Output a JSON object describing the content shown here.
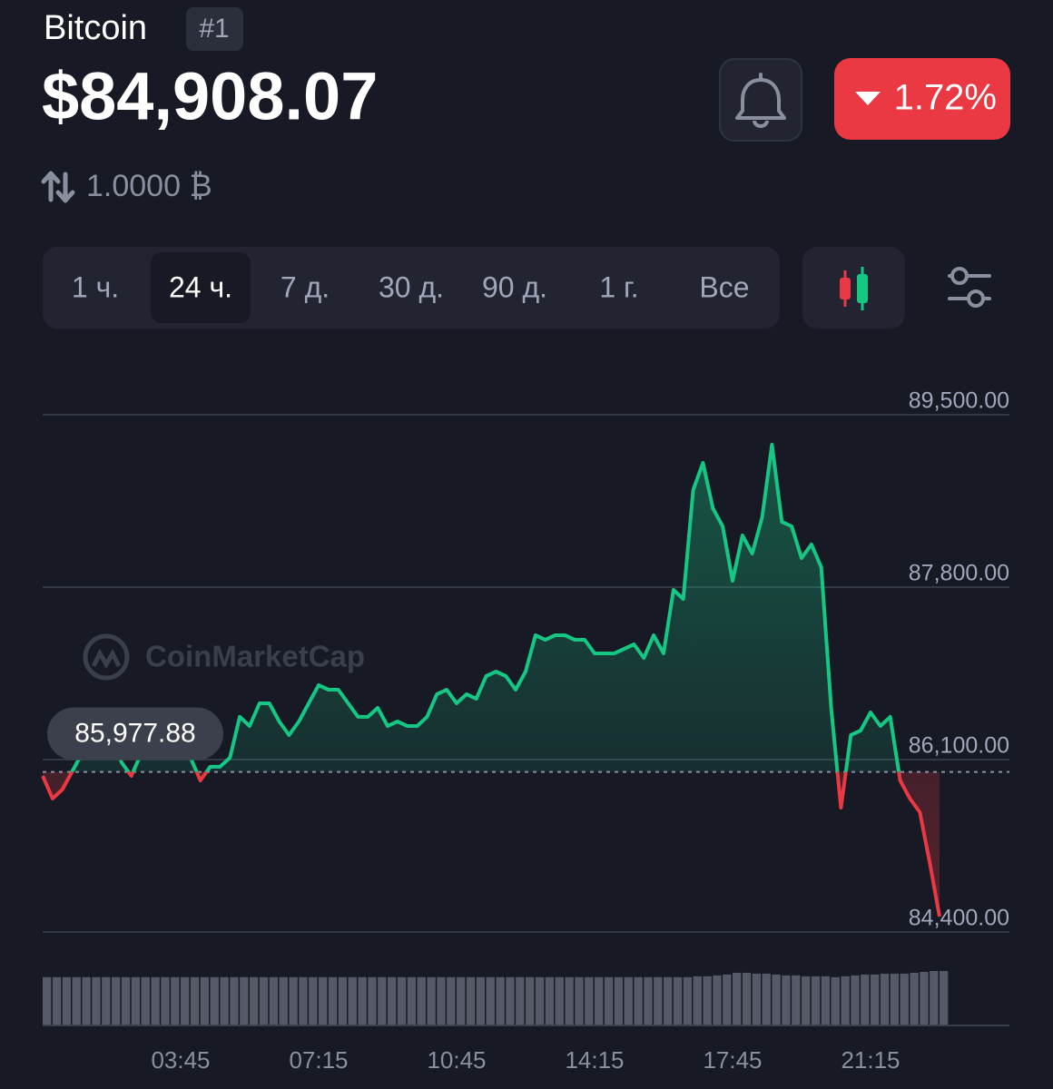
{
  "header": {
    "name": "Bitcoin",
    "rank": "#1",
    "price": "$84,908.07",
    "change": "1.72%",
    "change_direction": "down",
    "amount": "1.0000 ₿"
  },
  "tabs": [
    "1 ч.",
    "24 ч.",
    "7 д.",
    "30 д.",
    "90 д.",
    "1 г.",
    "Все"
  ],
  "active_tab": 1,
  "watermark": "CoinMarketCap",
  "chart_data": {
    "type": "line",
    "categories": [
      null,
      null,
      null,
      null,
      null,
      null,
      null,
      null,
      null,
      null,
      null,
      null,
      null,
      null,
      "03:45",
      null,
      null,
      null,
      null,
      null,
      null,
      null,
      null,
      null,
      null,
      null,
      null,
      null,
      "07:15",
      null,
      null,
      null,
      null,
      null,
      null,
      null,
      null,
      null,
      null,
      null,
      null,
      null,
      "10:45",
      null,
      null,
      null,
      null,
      null,
      null,
      null,
      null,
      null,
      null,
      null,
      null,
      null,
      "14:15",
      null,
      null,
      null,
      null,
      null,
      null,
      null,
      null,
      null,
      null,
      null,
      null,
      null,
      "17:45",
      null,
      null,
      null,
      null,
      null,
      null,
      null,
      null,
      null,
      null,
      null,
      null,
      null,
      "21:15",
      null,
      null,
      null,
      null,
      null,
      null,
      null
    ],
    "values": [
      85939,
      85715,
      85805,
      85984,
      86163,
      86208,
      86163,
      86342,
      86073,
      85939,
      86163,
      86118,
      86208,
      86163,
      86163,
      86118,
      85894,
      86029,
      86029,
      86118,
      86521,
      86431,
      86655,
      86655,
      86476,
      86342,
      86476,
      86655,
      86834,
      86789,
      86789,
      86655,
      86521,
      86521,
      86610,
      86431,
      86476,
      86431,
      86431,
      86521,
      86744,
      86789,
      86655,
      86744,
      86700,
      86923,
      86968,
      86923,
      86789,
      86968,
      87326,
      87281,
      87326,
      87326,
      87281,
      87281,
      87147,
      87147,
      87147,
      87192,
      87236,
      87102,
      87326,
      87147,
      87773,
      87684,
      88757,
      89026,
      88578,
      88400,
      87863,
      88310,
      88131,
      88489,
      89205,
      88444,
      88400,
      88086,
      88221,
      87997,
      86610,
      85626,
      86342,
      86386,
      86565,
      86431,
      86521,
      85894,
      85715,
      85581,
      85089,
      84552
    ],
    "volume": [
      55,
      55,
      55,
      55,
      55,
      55,
      55,
      55,
      55,
      55,
      55,
      55,
      55,
      55,
      55,
      55,
      55,
      55,
      55,
      55,
      55,
      55,
      55,
      55,
      55,
      55,
      55,
      55,
      55,
      55,
      55,
      55,
      55,
      55,
      55,
      55,
      55,
      55,
      55,
      55,
      55,
      55,
      55,
      55,
      55,
      55,
      55,
      55,
      55,
      55,
      55,
      55,
      55,
      55,
      55,
      55,
      55,
      55,
      55,
      55,
      55,
      55,
      55,
      55,
      55,
      55,
      56,
      56,
      57,
      58,
      60,
      60,
      59,
      59,
      58,
      57,
      57,
      56,
      56,
      56,
      55,
      56,
      57,
      58,
      58,
      59,
      59,
      59,
      60,
      61,
      62,
      62
    ],
    "ylim": [
      84400,
      89500
    ],
    "yticks": [
      {
        "value": 84400,
        "label": "84,400.00"
      },
      {
        "value": 86100,
        "label": "86,100.00"
      },
      {
        "value": 87800,
        "label": "87,800.00"
      },
      {
        "value": 89500,
        "label": "89,500.00"
      }
    ],
    "grid": true,
    "reference": {
      "value": 85977.88,
      "label": "85,977.88"
    },
    "up_color": "#16c784",
    "down_color": "#ea3943"
  }
}
